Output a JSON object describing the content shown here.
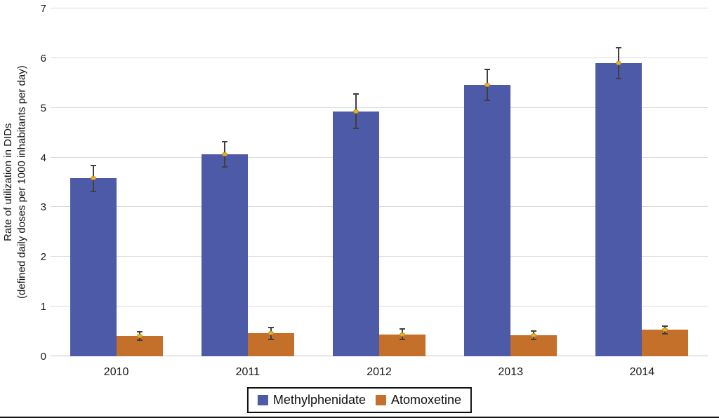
{
  "chart_data": {
    "type": "bar",
    "title": "",
    "ylabel_line1": "Rate of utilization in DIDs",
    "ylabel_line2": "(defined daily doses per 1000 inhabitants per day)",
    "xlabel": "",
    "categories": [
      "2010",
      "2011",
      "2012",
      "2013",
      "2014"
    ],
    "series": [
      {
        "name": "Methylphenidate",
        "color": "#4d5aa7",
        "values": [
          3.58,
          4.07,
          4.93,
          5.46,
          5.9
        ],
        "errors": [
          0.28,
          0.27,
          0.36,
          0.32,
          0.33
        ]
      },
      {
        "name": "Atomoxetine",
        "color": "#c4702a",
        "values": [
          0.41,
          0.46,
          0.44,
          0.42,
          0.53
        ],
        "errors": [
          0.1,
          0.13,
          0.12,
          0.1,
          0.09
        ]
      }
    ],
    "ylim": [
      0,
      7
    ],
    "yticks": [
      0,
      1,
      2,
      3,
      4,
      5,
      6,
      7
    ],
    "grid": true,
    "legend_position": "bottom",
    "marker_color": "#e8b124",
    "error_color": "#3f3f3f",
    "background": "#ffffff",
    "gridline_color": "#d9d9d9"
  }
}
